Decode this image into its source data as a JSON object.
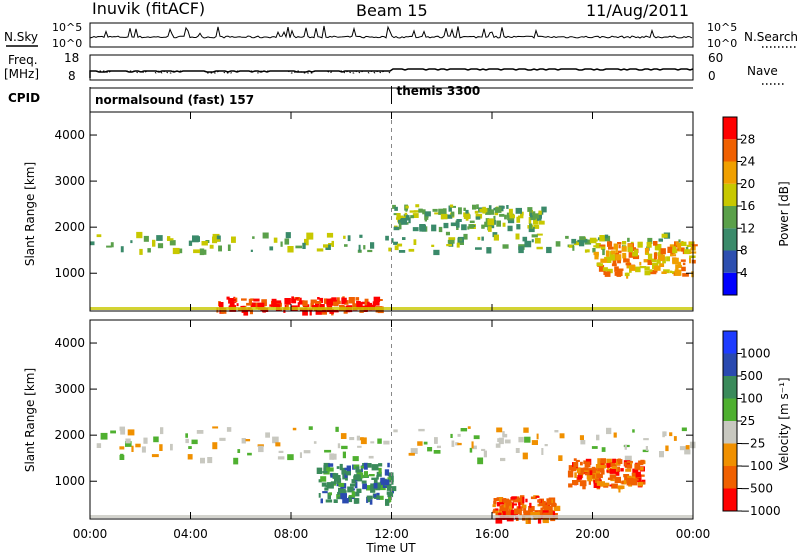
{
  "header": {
    "station": "Inuvik (fitACF)",
    "beam": "Beam 15",
    "date": "11/Aug/2011"
  },
  "status_panels": {
    "nsky_label": "N.Sky",
    "nsky_ticks": [
      "10^5",
      "10^0"
    ],
    "nsearch_label": "N.Search",
    "nsearch_ticks": [
      "10^5",
      "10^0"
    ],
    "freq_label_1": "Freq.",
    "freq_label_2": "[MHz]",
    "freq_ticks": [
      "18",
      "8"
    ],
    "nave_label": "Nave",
    "nave_ticks": [
      "60",
      "0"
    ],
    "cpid_label": "CPID",
    "cpid_segments": [
      {
        "name": "normalsound (fast) 157",
        "start_hour": 0
      },
      {
        "name": "themis 3300",
        "start_hour": 12.0
      }
    ]
  },
  "time_axis": {
    "label": "Time UT",
    "ticks": [
      "00:00",
      "04:00",
      "08:00",
      "12:00",
      "16:00",
      "20:00",
      "00:00"
    ],
    "range_hours": [
      0,
      24
    ]
  },
  "chart_data": [
    {
      "type": "heatmap",
      "parameter": "Power",
      "ylabel": "Slant Range [km]",
      "yticks": [
        "1000",
        "2000",
        "3000",
        "4000"
      ],
      "ylim_km": [
        180,
        4500
      ],
      "colorbar_label": "Power [dB]",
      "colorbar_ticks": [
        "4",
        "8",
        "12",
        "16",
        "20",
        "24",
        "28"
      ],
      "colorbar_range": [
        0,
        32
      ],
      "colors": [
        "#0000ff",
        "#2d4fb0",
        "#3a8a6a",
        "#5aa04a",
        "#c8c800",
        "#f0a000",
        "#f06000",
        "#ff0000"
      ],
      "features_ut_hours_km": [
        {
          "from_h": 0,
          "to_h": 24,
          "from_km": 1500,
          "to_km": 1900,
          "value_db": 14
        },
        {
          "from_h": 5,
          "to_h": 11.5,
          "from_km": 200,
          "to_km": 500,
          "value_db": 30
        },
        {
          "from_h": 12,
          "to_h": 18,
          "from_km": 2000,
          "to_km": 2500,
          "value_db": 12
        },
        {
          "from_h": 20,
          "to_h": 24,
          "from_km": 1000,
          "to_km": 1700,
          "value_db": 22
        }
      ]
    },
    {
      "type": "heatmap",
      "parameter": "Velocity",
      "ylabel": "Slant Range [km]",
      "yticks": [
        "1000",
        "2000",
        "3000",
        "4000"
      ],
      "ylim_km": [
        180,
        4500
      ],
      "colorbar_label": "Velocity [m s⁻¹]",
      "colorbar_ticks": [
        "1000",
        "500",
        "100",
        "25",
        "−25",
        "−100",
        "−500",
        "−1000"
      ],
      "colors": [
        "#1e3cff",
        "#2a4ab0",
        "#3a8a5a",
        "#4fb030",
        "#c8c8c0",
        "#f09000",
        "#f06000",
        "#ff0000"
      ],
      "features_ut_hours_km": [
        {
          "from_h": 0,
          "to_h": 24,
          "from_km": 1500,
          "to_km": 2200,
          "value_ms": 0
        },
        {
          "from_h": 9,
          "to_h": 12,
          "from_km": 600,
          "to_km": 1400,
          "value_ms": 300
        },
        {
          "from_h": 16,
          "to_h": 18.5,
          "from_km": 200,
          "to_km": 700,
          "value_ms": -300
        },
        {
          "from_h": 19,
          "to_h": 22,
          "from_km": 900,
          "to_km": 1500,
          "value_ms": -200
        }
      ]
    }
  ]
}
